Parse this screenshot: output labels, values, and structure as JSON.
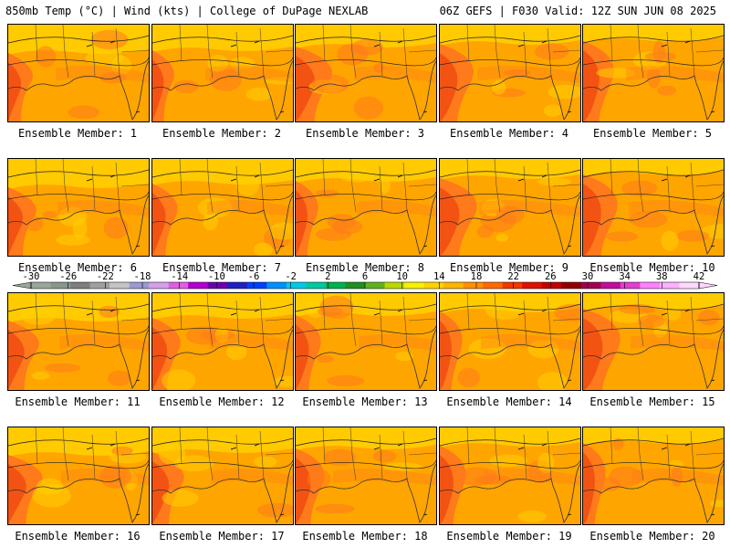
{
  "header": {
    "left": "850mb Temp (°C) | Wind (kts) | College of DuPage NEXLAB",
    "right": "06Z GEFS | F030 Valid: 12Z SUN JUN 08 2025"
  },
  "members": [
    {
      "label": "Ensemble Member: 1"
    },
    {
      "label": "Ensemble Member: 2"
    },
    {
      "label": "Ensemble Member: 3"
    },
    {
      "label": "Ensemble Member: 4"
    },
    {
      "label": "Ensemble Member: 5"
    },
    {
      "label": "Ensemble Member: 6"
    },
    {
      "label": "Ensemble Member: 7"
    },
    {
      "label": "Ensemble Member: 8"
    },
    {
      "label": "Ensemble Member: 9"
    },
    {
      "label": "Ensemble Member: 10"
    },
    {
      "label": "Ensemble Member: 11"
    },
    {
      "label": "Ensemble Member: 12"
    },
    {
      "label": "Ensemble Member: 13"
    },
    {
      "label": "Ensemble Member: 14"
    },
    {
      "label": "Ensemble Member: 15"
    },
    {
      "label": "Ensemble Member: 16"
    },
    {
      "label": "Ensemble Member: 17"
    },
    {
      "label": "Ensemble Member: 18"
    },
    {
      "label": "Ensemble Member: 19"
    },
    {
      "label": "Ensemble Member: 20"
    }
  ],
  "colorbar": {
    "tick_labels": [
      "-30",
      "-26",
      "-22",
      "-18",
      "-14",
      "-10",
      "-6",
      "-2",
      "2",
      "6",
      "10",
      "14",
      "18",
      "22",
      "26",
      "30",
      "34",
      "38",
      "42"
    ],
    "colors": [
      "#9aa69a",
      "#8a968a",
      "#7f7f7f",
      "#a0a0a0",
      "#c4c4c4",
      "#9b9bd0",
      "#d4a0e8",
      "#e060e0",
      "#b000d0",
      "#6a00b0",
      "#2020c0",
      "#0040ff",
      "#0090ff",
      "#00c8e8",
      "#00c8a0",
      "#00b050",
      "#209020",
      "#60b020",
      "#b8d800",
      "#f8f000",
      "#ffd200",
      "#ffb400",
      "#ff9000",
      "#ff6a00",
      "#f03800",
      "#e01000",
      "#c00000",
      "#900000",
      "#a00050",
      "#c0109a",
      "#e040d0",
      "#ff80ff",
      "#ffb0ff",
      "#ffd8ff"
    ]
  },
  "colors": {
    "warm_low": "#ffd000",
    "warm_mid": "#ffa500",
    "warm_high": "#ff7a1a",
    "warm_max": "#f04a10"
  }
}
